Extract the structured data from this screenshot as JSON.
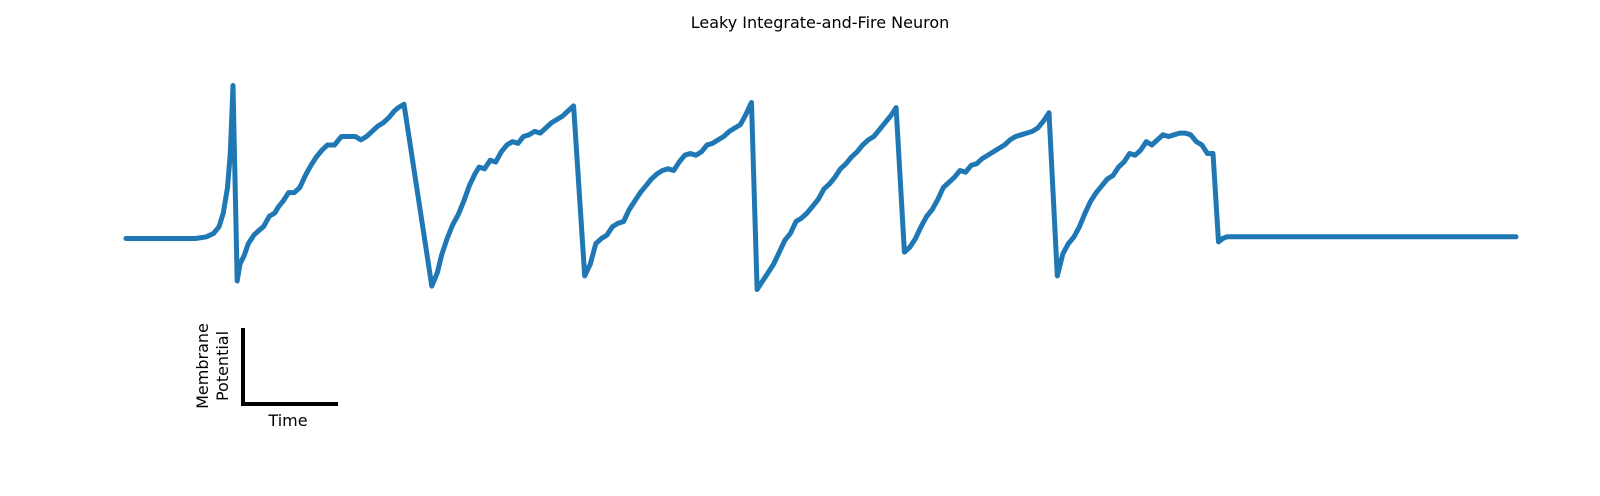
{
  "chart_data": {
    "type": "line",
    "title": "Leaky Integrate-and-Fire Neuron",
    "xlabel": "",
    "ylabel": "",
    "grid": false,
    "axes_visible": false,
    "xlim": [
      0,
      1000
    ],
    "ylim": [
      -1,
      1
    ],
    "series": [
      {
        "color": "#1f77b4",
        "points": [
          [
            0,
            -0.05
          ],
          [
            20,
            -0.05
          ],
          [
            40,
            -0.05
          ],
          [
            50,
            -0.05
          ],
          [
            58,
            -0.04
          ],
          [
            63,
            -0.02
          ],
          [
            67,
            0.02
          ],
          [
            70,
            0.1
          ],
          [
            73,
            0.25
          ],
          [
            75,
            0.45
          ],
          [
            77,
            0.85
          ],
          [
            80,
            -0.3
          ],
          [
            82,
            -0.2
          ],
          [
            85,
            -0.15
          ],
          [
            88,
            -0.08
          ],
          [
            92,
            -0.03
          ],
          [
            96,
            0.0
          ],
          [
            99,
            0.02
          ],
          [
            103,
            0.08
          ],
          [
            107,
            0.1
          ],
          [
            110,
            0.14
          ],
          [
            113,
            0.17
          ],
          [
            117,
            0.22
          ],
          [
            121,
            0.22
          ],
          [
            125,
            0.25
          ],
          [
            129,
            0.32
          ],
          [
            133,
            0.38
          ],
          [
            137,
            0.43
          ],
          [
            141,
            0.47
          ],
          [
            145,
            0.5
          ],
          [
            150,
            0.5
          ],
          [
            155,
            0.55
          ],
          [
            160,
            0.55
          ],
          [
            165,
            0.55
          ],
          [
            169,
            0.53
          ],
          [
            173,
            0.55
          ],
          [
            177,
            0.58
          ],
          [
            181,
            0.61
          ],
          [
            185,
            0.63
          ],
          [
            189,
            0.66
          ],
          [
            193,
            0.7
          ],
          [
            196,
            0.72
          ],
          [
            200,
            0.74
          ],
          [
            220,
            -0.33
          ],
          [
            224,
            -0.25
          ],
          [
            227,
            -0.15
          ],
          [
            231,
            -0.05
          ],
          [
            235,
            0.03
          ],
          [
            239,
            0.09
          ],
          [
            243,
            0.17
          ],
          [
            247,
            0.26
          ],
          [
            251,
            0.33
          ],
          [
            254,
            0.37
          ],
          [
            258,
            0.36
          ],
          [
            262,
            0.41
          ],
          [
            266,
            0.4
          ],
          [
            270,
            0.46
          ],
          [
            274,
            0.5
          ],
          [
            278,
            0.52
          ],
          [
            282,
            0.51
          ],
          [
            286,
            0.55
          ],
          [
            290,
            0.56
          ],
          [
            294,
            0.58
          ],
          [
            298,
            0.57
          ],
          [
            302,
            0.6
          ],
          [
            306,
            0.63
          ],
          [
            310,
            0.65
          ],
          [
            314,
            0.67
          ],
          [
            318,
            0.7
          ],
          [
            322,
            0.73
          ],
          [
            330,
            -0.27
          ],
          [
            334,
            -0.2
          ],
          [
            338,
            -0.08
          ],
          [
            342,
            -0.05
          ],
          [
            346,
            -0.03
          ],
          [
            350,
            0.02
          ],
          [
            354,
            0.04
          ],
          [
            358,
            0.05
          ],
          [
            362,
            0.12
          ],
          [
            366,
            0.17
          ],
          [
            370,
            0.22
          ],
          [
            374,
            0.26
          ],
          [
            378,
            0.3
          ],
          [
            382,
            0.33
          ],
          [
            386,
            0.35
          ],
          [
            390,
            0.36
          ],
          [
            394,
            0.35
          ],
          [
            398,
            0.4
          ],
          [
            402,
            0.44
          ],
          [
            406,
            0.45
          ],
          [
            410,
            0.44
          ],
          [
            414,
            0.46
          ],
          [
            418,
            0.5
          ],
          [
            422,
            0.51
          ],
          [
            426,
            0.53
          ],
          [
            430,
            0.55
          ],
          [
            434,
            0.58
          ],
          [
            438,
            0.6
          ],
          [
            442,
            0.62
          ],
          [
            446,
            0.68
          ],
          [
            450,
            0.75
          ],
          [
            454,
            -0.35
          ],
          [
            458,
            -0.3
          ],
          [
            462,
            -0.25
          ],
          [
            466,
            -0.2
          ],
          [
            470,
            -0.13
          ],
          [
            474,
            -0.06
          ],
          [
            478,
            -0.02
          ],
          [
            482,
            0.05
          ],
          [
            486,
            0.07
          ],
          [
            490,
            0.1
          ],
          [
            494,
            0.14
          ],
          [
            498,
            0.18
          ],
          [
            502,
            0.24
          ],
          [
            506,
            0.27
          ],
          [
            510,
            0.31
          ],
          [
            514,
            0.36
          ],
          [
            518,
            0.39
          ],
          [
            522,
            0.43
          ],
          [
            526,
            0.46
          ],
          [
            530,
            0.5
          ],
          [
            534,
            0.53
          ],
          [
            538,
            0.55
          ],
          [
            542,
            0.59
          ],
          [
            546,
            0.63
          ],
          [
            550,
            0.67
          ],
          [
            554,
            0.72
          ],
          [
            560,
            -0.13
          ],
          [
            564,
            -0.1
          ],
          [
            568,
            -0.05
          ],
          [
            572,
            0.02
          ],
          [
            576,
            0.08
          ],
          [
            580,
            0.12
          ],
          [
            584,
            0.18
          ],
          [
            588,
            0.25
          ],
          [
            592,
            0.28
          ],
          [
            596,
            0.31
          ],
          [
            600,
            0.35
          ],
          [
            604,
            0.34
          ],
          [
            608,
            0.38
          ],
          [
            612,
            0.39
          ],
          [
            616,
            0.42
          ],
          [
            620,
            0.44
          ],
          [
            624,
            0.46
          ],
          [
            628,
            0.48
          ],
          [
            632,
            0.5
          ],
          [
            636,
            0.53
          ],
          [
            640,
            0.55
          ],
          [
            644,
            0.56
          ],
          [
            648,
            0.57
          ],
          [
            652,
            0.58
          ],
          [
            656,
            0.6
          ],
          [
            660,
            0.64
          ],
          [
            664,
            0.69
          ],
          [
            670,
            -0.27
          ],
          [
            674,
            -0.14
          ],
          [
            678,
            -0.08
          ],
          [
            682,
            -0.04
          ],
          [
            686,
            0.02
          ],
          [
            690,
            0.1
          ],
          [
            694,
            0.17
          ],
          [
            698,
            0.22
          ],
          [
            702,
            0.26
          ],
          [
            706,
            0.3
          ],
          [
            710,
            0.32
          ],
          [
            714,
            0.37
          ],
          [
            718,
            0.4
          ],
          [
            722,
            0.45
          ],
          [
            726,
            0.44
          ],
          [
            730,
            0.47
          ],
          [
            734,
            0.52
          ],
          [
            738,
            0.5
          ],
          [
            742,
            0.53
          ],
          [
            746,
            0.56
          ],
          [
            750,
            0.55
          ],
          [
            754,
            0.56
          ],
          [
            758,
            0.57
          ],
          [
            762,
            0.57
          ],
          [
            766,
            0.56
          ],
          [
            770,
            0.52
          ],
          [
            774,
            0.5
          ],
          [
            778,
            0.45
          ],
          [
            782,
            0.45
          ],
          [
            786,
            -0.07
          ],
          [
            789,
            -0.05
          ],
          [
            792,
            -0.04
          ],
          [
            810,
            -0.04
          ],
          [
            830,
            -0.04
          ],
          [
            850,
            -0.04
          ],
          [
            870,
            -0.04
          ],
          [
            890,
            -0.04
          ],
          [
            910,
            -0.04
          ],
          [
            930,
            -0.04
          ],
          [
            950,
            -0.04
          ],
          [
            970,
            -0.04
          ],
          [
            990,
            -0.04
          ],
          [
            1000,
            -0.04
          ]
        ]
      }
    ],
    "scale_bar": {
      "horizontal_label": "Time",
      "vertical_label_lines": [
        "Membrane",
        "Potential"
      ]
    }
  }
}
